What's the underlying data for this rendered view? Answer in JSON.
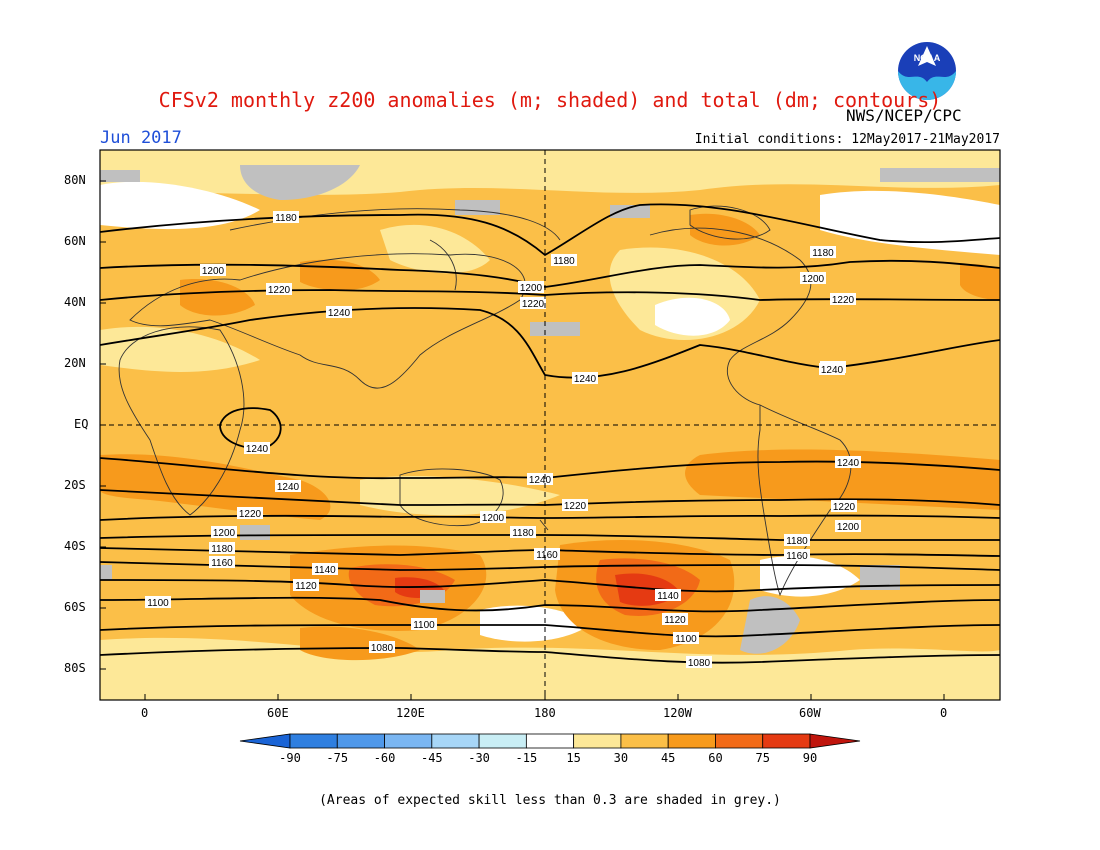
{
  "title": "CFSv2 monthly z200 anomalies (m; shaded) and total (dm; contours)",
  "agency": "NWS/NCEP/CPC",
  "logo_text": "NOAA",
  "month": "Jun 2017",
  "initial_conditions": "Initial conditions: 12May2017-21May2017",
  "footnote": "(Areas of expected skill less than 0.3 are shaded in grey.)",
  "lat_labels": [
    "80N",
    "60N",
    "40N",
    "20N",
    "EQ",
    "20S",
    "40S",
    "60S",
    "80S"
  ],
  "lon_labels": [
    "0",
    "60E",
    "120E",
    "180",
    "120W",
    "60W",
    "0"
  ],
  "colorbar": {
    "labels": [
      "-90",
      "-75",
      "-60",
      "-45",
      "-30",
      "-15",
      "15",
      "30",
      "45",
      "60",
      "75",
      "90"
    ],
    "colors": [
      "#1a64d6",
      "#2f7fe0",
      "#4f98ea",
      "#7ab6f2",
      "#a7d6f7",
      "#c9eef5",
      "#ffffff",
      "#fde898",
      "#fbbf48",
      "#f79a1c",
      "#f26a17",
      "#e53a12",
      "#c0150d"
    ]
  },
  "colors": {
    "bg_anomaly": "#fbbf48",
    "light": "#fde898",
    "strong": "#f79a1c",
    "stronger": "#f26a17",
    "strongest": "#e53a12",
    "grey": "#c0c0c0"
  },
  "contour_labels": [
    "1180",
    "1200",
    "1220",
    "1240",
    "1180",
    "1200",
    "1220",
    "1240",
    "1180",
    "1200",
    "1220",
    "1240",
    "1240",
    "1240",
    "1240",
    "1240",
    "1220",
    "1220",
    "1200",
    "1200",
    "1180",
    "1180",
    "1160",
    "1160",
    "1140",
    "1120",
    "1100",
    "1100",
    "1080",
    "1140",
    "1120",
    "1100",
    "1080",
    "1180",
    "1160",
    "1240",
    "1220",
    "1200"
  ]
}
